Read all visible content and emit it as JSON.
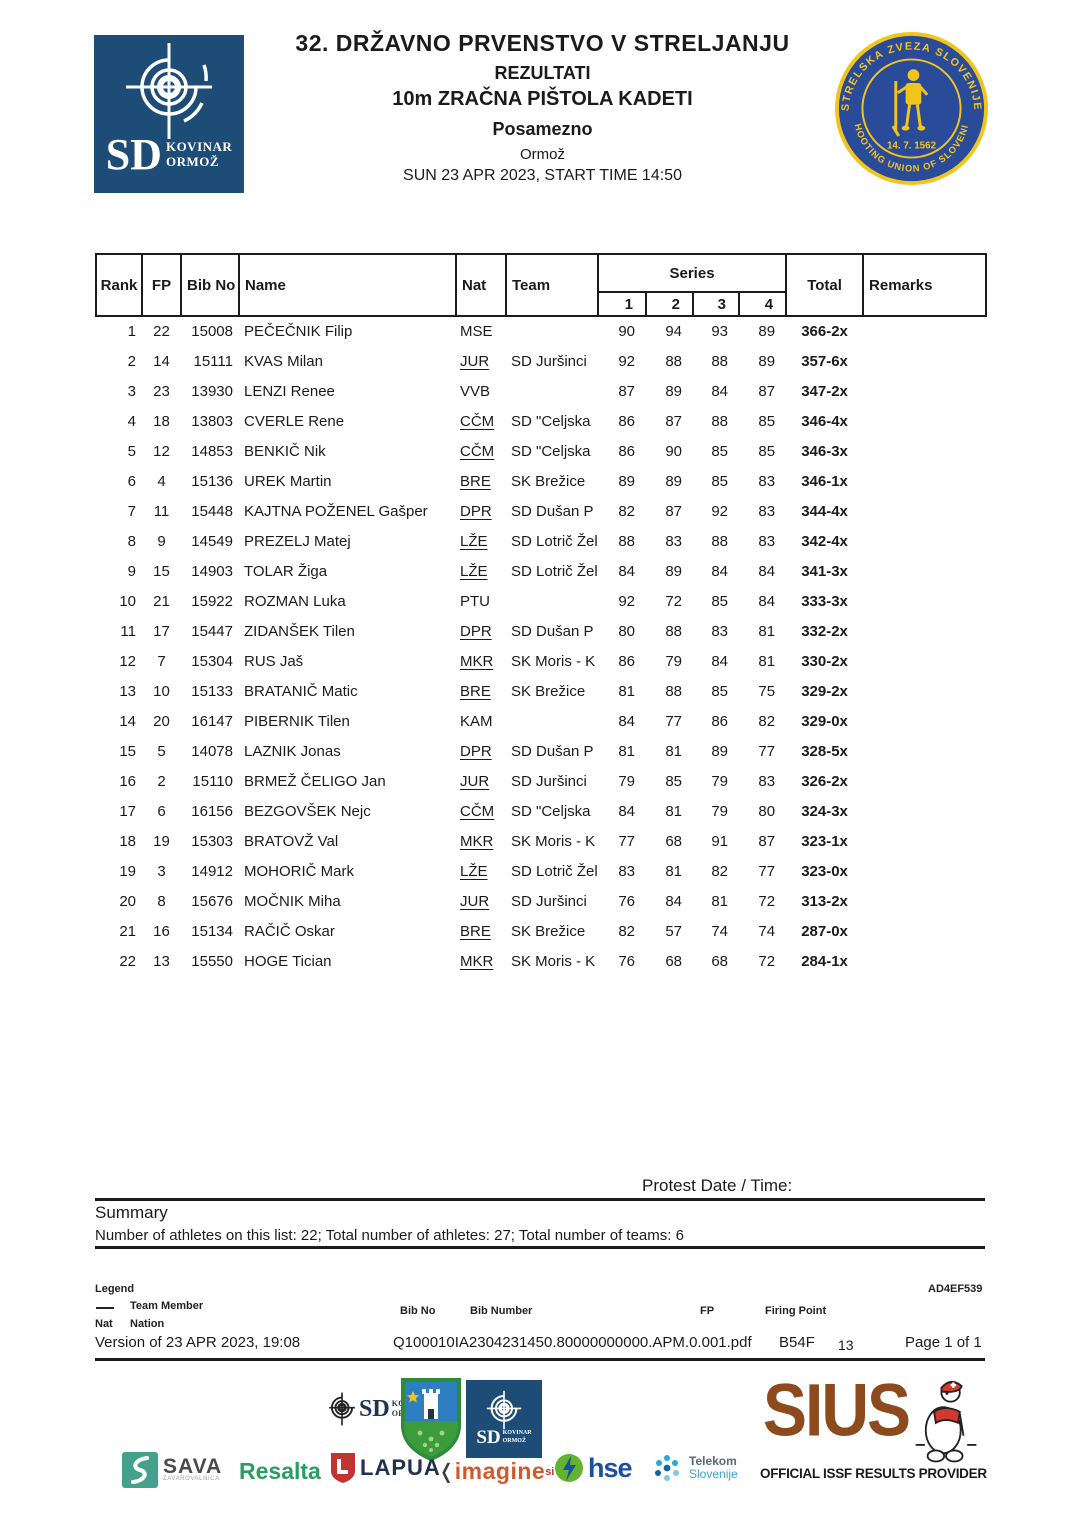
{
  "header": {
    "title": "32. DRŽAVNO PRVENSTVO V STRELJANJU",
    "subtitle": "REZULTATI",
    "event": "10m ZRAČNA PIŠTOLA KADETI",
    "category": "Posamezno",
    "location": "Ormož",
    "datetime": "SUN 23 APR 2023, START TIME 14:50",
    "left_logo": {
      "sd": "SD",
      "line1": "KOVINAR",
      "line2": "ORMOŽ"
    },
    "seal": {
      "top_text": "STRELSKA ZVEZA SLOVENIJE",
      "bottom_text": "SHOOTING UNION OF SLOVENIA",
      "date": "14. 7. 1562"
    }
  },
  "table": {
    "columns": {
      "rank": "Rank",
      "fp": "FP",
      "bib": "Bib No",
      "name": "Name",
      "nat": "Nat",
      "team": "Team",
      "series": "Series",
      "series_subs": [
        "1",
        "2",
        "3",
        "4"
      ],
      "total": "Total",
      "remarks": "Remarks"
    },
    "rows": [
      {
        "rank": 1,
        "fp": 22,
        "bib": 15008,
        "name": "PEČEČNIK Filip",
        "nat": "MSE",
        "member": false,
        "team": "",
        "series": [
          90,
          94,
          93,
          89
        ],
        "total": "366-2x",
        "remarks": ""
      },
      {
        "rank": 2,
        "fp": 14,
        "bib": 15111,
        "name": "KVAS Milan",
        "nat": "JUR",
        "member": true,
        "team": "SD Juršinci",
        "series": [
          92,
          88,
          88,
          89
        ],
        "total": "357-6x",
        "remarks": ""
      },
      {
        "rank": 3,
        "fp": 23,
        "bib": 13930,
        "name": "LENZI Renee",
        "nat": "VVB",
        "member": false,
        "team": "",
        "series": [
          87,
          89,
          84,
          87
        ],
        "total": "347-2x",
        "remarks": ""
      },
      {
        "rank": 4,
        "fp": 18,
        "bib": 13803,
        "name": "CVERLE Rene",
        "nat": "CČM",
        "member": true,
        "team": "SD \"Celjska",
        "series": [
          86,
          87,
          88,
          85
        ],
        "total": "346-4x",
        "remarks": ""
      },
      {
        "rank": 5,
        "fp": 12,
        "bib": 14853,
        "name": "BENKIČ Nik",
        "nat": "CČM",
        "member": true,
        "team": "SD \"Celjska",
        "series": [
          86,
          90,
          85,
          85
        ],
        "total": "346-3x",
        "remarks": ""
      },
      {
        "rank": 6,
        "fp": 4,
        "bib": 15136,
        "name": "UREK Martin",
        "nat": "BRE",
        "member": true,
        "team": "SK Brežice",
        "series": [
          89,
          89,
          85,
          83
        ],
        "total": "346-1x",
        "remarks": ""
      },
      {
        "rank": 7,
        "fp": 11,
        "bib": 15448,
        "name": "KAJTNA POŽENEL Gašper",
        "nat": "DPR",
        "member": true,
        "team": "SD Dušan P",
        "series": [
          82,
          87,
          92,
          83
        ],
        "total": "344-4x",
        "remarks": ""
      },
      {
        "rank": 8,
        "fp": 9,
        "bib": 14549,
        "name": "PREZELJ Matej",
        "nat": "LŽE",
        "member": true,
        "team": "SD Lotrič Žel",
        "series": [
          88,
          83,
          88,
          83
        ],
        "total": "342-4x",
        "remarks": ""
      },
      {
        "rank": 9,
        "fp": 15,
        "bib": 14903,
        "name": "TOLAR Žiga",
        "nat": "LŽE",
        "member": true,
        "team": "SD Lotrič Žel",
        "series": [
          84,
          89,
          84,
          84
        ],
        "total": "341-3x",
        "remarks": ""
      },
      {
        "rank": 10,
        "fp": 21,
        "bib": 15922,
        "name": "ROZMAN Luka",
        "nat": "PTU",
        "member": false,
        "team": "",
        "series": [
          92,
          72,
          85,
          84
        ],
        "total": "333-3x",
        "remarks": ""
      },
      {
        "rank": 11,
        "fp": 17,
        "bib": 15447,
        "name": "ZIDANŠEK Tilen",
        "nat": "DPR",
        "member": true,
        "team": "SD Dušan P",
        "series": [
          80,
          88,
          83,
          81
        ],
        "total": "332-2x",
        "remarks": ""
      },
      {
        "rank": 12,
        "fp": 7,
        "bib": 15304,
        "name": "RUS Jaš",
        "nat": "MKR",
        "member": true,
        "team": "SK Moris - K",
        "series": [
          86,
          79,
          84,
          81
        ],
        "total": "330-2x",
        "remarks": ""
      },
      {
        "rank": 13,
        "fp": 10,
        "bib": 15133,
        "name": "BRATANIČ Matic",
        "nat": "BRE",
        "member": true,
        "team": "SK Brežice",
        "series": [
          81,
          88,
          85,
          75
        ],
        "total": "329-2x",
        "remarks": ""
      },
      {
        "rank": 14,
        "fp": 20,
        "bib": 16147,
        "name": "PIBERNIK Tilen",
        "nat": "KAM",
        "member": false,
        "team": "",
        "series": [
          84,
          77,
          86,
          82
        ],
        "total": "329-0x",
        "remarks": ""
      },
      {
        "rank": 15,
        "fp": 5,
        "bib": 14078,
        "name": "LAZNIK Jonas",
        "nat": "DPR",
        "member": true,
        "team": "SD Dušan P",
        "series": [
          81,
          81,
          89,
          77
        ],
        "total": "328-5x",
        "remarks": ""
      },
      {
        "rank": 16,
        "fp": 2,
        "bib": 15110,
        "name": "BRMEŽ ČELIGO Jan",
        "nat": "JUR",
        "member": true,
        "team": "SD Juršinci",
        "series": [
          79,
          85,
          79,
          83
        ],
        "total": "326-2x",
        "remarks": ""
      },
      {
        "rank": 17,
        "fp": 6,
        "bib": 16156,
        "name": "BEZGOVŠEK Nejc",
        "nat": "CČM",
        "member": true,
        "team": "SD \"Celjska",
        "series": [
          84,
          81,
          79,
          80
        ],
        "total": "324-3x",
        "remarks": ""
      },
      {
        "rank": 18,
        "fp": 19,
        "bib": 15303,
        "name": "BRATOVŽ Val",
        "nat": "MKR",
        "member": true,
        "team": "SK Moris - K",
        "series": [
          77,
          68,
          91,
          87
        ],
        "total": "323-1x",
        "remarks": ""
      },
      {
        "rank": 19,
        "fp": 3,
        "bib": 14912,
        "name": "MOHORIČ Mark",
        "nat": "LŽE",
        "member": true,
        "team": "SD Lotrič Žel",
        "series": [
          83,
          81,
          82,
          77
        ],
        "total": "323-0x",
        "remarks": ""
      },
      {
        "rank": 20,
        "fp": 8,
        "bib": 15676,
        "name": "MOČNIK Miha",
        "nat": "JUR",
        "member": true,
        "team": "SD Juršinci",
        "series": [
          76,
          84,
          81,
          72
        ],
        "total": "313-2x",
        "remarks": ""
      },
      {
        "rank": 21,
        "fp": 16,
        "bib": 15134,
        "name": "RAČIČ Oskar",
        "nat": "BRE",
        "member": true,
        "team": "SK Brežice",
        "series": [
          82,
          57,
          74,
          74
        ],
        "total": "287-0x",
        "remarks": ""
      },
      {
        "rank": 22,
        "fp": 13,
        "bib": 15550,
        "name": "HOGE Tician",
        "nat": "MKR",
        "member": true,
        "team": "SK Moris - K",
        "series": [
          76,
          68,
          68,
          72
        ],
        "total": "284-1x",
        "remarks": ""
      }
    ]
  },
  "protest_label": "Protest Date / Time:",
  "summary": {
    "title": "Summary",
    "text": "Number of athletes on this list: 22; Total number of athletes: 27; Total number of teams: 6"
  },
  "legend": {
    "title": "Legend",
    "code": "AD4EF539",
    "items": [
      {
        "symbol": "—",
        "label": "Team Member"
      },
      {
        "symbol": "Nat",
        "label": "Nation"
      },
      {
        "symbol": "Bib No",
        "label": "Bib Number"
      },
      {
        "symbol": "FP",
        "label": "Firing Point"
      }
    ]
  },
  "version_bar": {
    "version": "Version of 23 APR 2023, 19:08",
    "file": "Q100010IA2304231450.80000000000.APM.0.001.pdf",
    "code": "B54F",
    "number": "13",
    "page": "Page 1 of 1"
  },
  "footer": {
    "sd_logo": {
      "sd": "SD",
      "line1": "KOVINAR",
      "line2": "ORMOŽ"
    },
    "sponsors": {
      "sava": {
        "label": "SAVA",
        "sub": "ZAVAROVALNICA"
      },
      "resalta": {
        "label": "Resalta"
      },
      "lapua": {
        "label": "LAPUA"
      },
      "imagine": {
        "label": "imagine",
        "suffix": "si"
      },
      "hse": {
        "label": "hse"
      },
      "telekom": {
        "line1": "Telekom",
        "line2": "Slovenije"
      }
    },
    "sius": {
      "word": "SIUS",
      "tagline": "OFFICIAL ISSF RESULTS PROVIDER"
    }
  },
  "colors": {
    "logo_blue": "#1d4c77",
    "seal_blue": "#2a4a9a",
    "seal_yellow": "#f2c51d",
    "sius_brown": "#8c4a1d",
    "sava_teal": "#43a18c",
    "resalta_green": "#2a9d63",
    "lapua_red": "#c23430",
    "hse_blue": "#1d4fa0",
    "text_black": "#1b1b1b"
  }
}
